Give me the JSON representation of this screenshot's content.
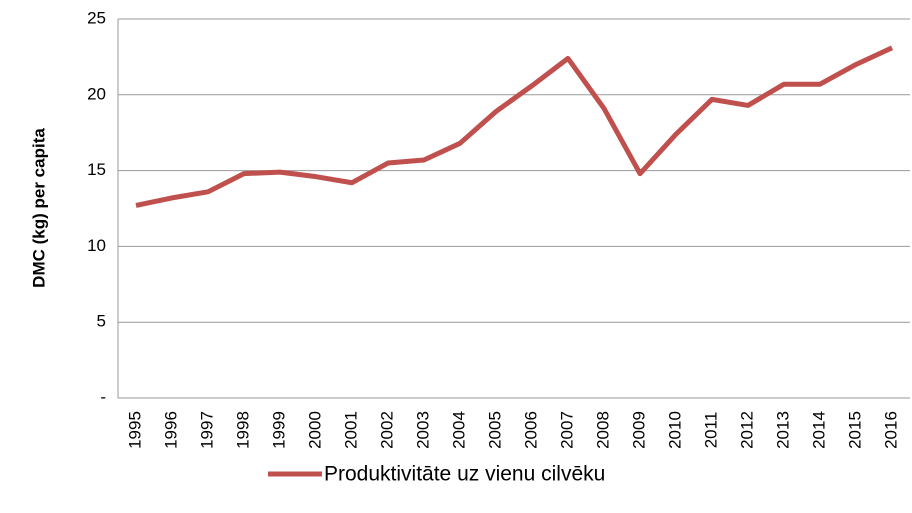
{
  "chart_data": {
    "type": "line",
    "ylabel": "DMC (kg) per capita",
    "categories": [
      "1995",
      "1996",
      "1997",
      "1998",
      "1999",
      "2000",
      "2001",
      "2002",
      "2003",
      "2004",
      "2005",
      "2006",
      "2007",
      "2008",
      "2009",
      "2010",
      "2011",
      "2012",
      "2013",
      "2014",
      "2015",
      "2016"
    ],
    "series": [
      {
        "name": "Produktivitāte uz vienu cilvēku",
        "color": "#c0504d",
        "values": [
          12.7,
          13.2,
          13.6,
          14.8,
          14.9,
          14.6,
          14.2,
          15.5,
          15.7,
          16.8,
          18.9,
          20.6,
          22.4,
          19.1,
          14.8,
          17.4,
          19.7,
          19.3,
          20.7,
          20.7,
          22.0,
          23.1
        ]
      }
    ],
    "ylim": [
      0,
      25
    ],
    "yticks": [
      {
        "value": 0,
        "label": "-"
      },
      5,
      10,
      15,
      20,
      25
    ],
    "grid": true,
    "legend": "bottom"
  }
}
